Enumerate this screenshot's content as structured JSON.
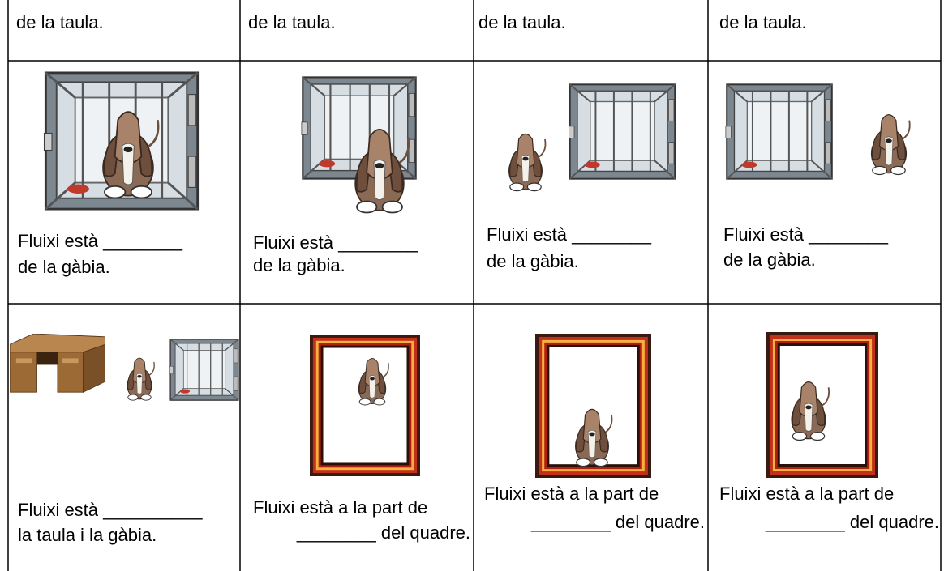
{
  "table": {
    "rows": [
      [
        [
          "de la taula."
        ],
        [
          "de la taula."
        ],
        [
          "de la taula."
        ],
        [
          "de la taula."
        ]
      ],
      [
        [
          "Fluixi està ________",
          "de la gàbia."
        ],
        [
          "Fluixi està ________",
          "de la gàbia."
        ],
        [
          "Fluixi està ________",
          "de la gàbia."
        ],
        [
          "Fluixi està ________",
          "de la gàbia."
        ]
      ],
      [
        [
          "Fluixi està __________",
          "la taula i la gàbia."
        ],
        [
          "Fluixi està a la part de",
          "________ del quadre."
        ],
        [
          "Fluixi està a la part de",
          "________ del quadre."
        ],
        [
          "Fluixi està a la part de",
          "________ del quadre."
        ]
      ]
    ]
  }
}
